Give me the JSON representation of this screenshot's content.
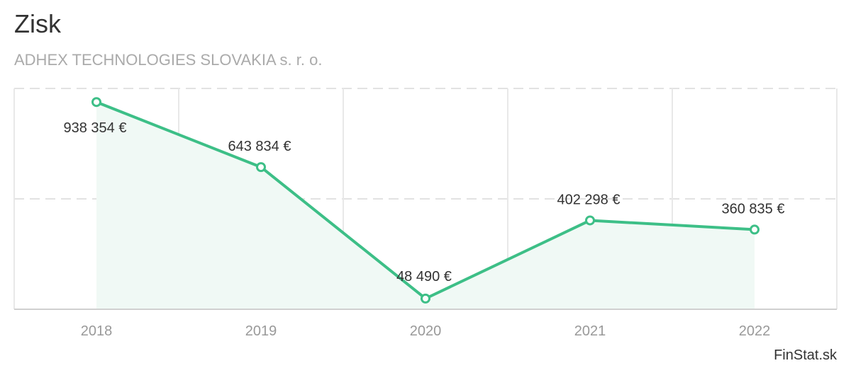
{
  "header": {
    "title": "Zisk",
    "subtitle": "ADHEX TECHNOLOGIES SLOVAKIA s. r. o."
  },
  "footer": {
    "credit": "FinStat.sk"
  },
  "chart_data": {
    "type": "area",
    "title": "Zisk",
    "subtitle": "ADHEX TECHNOLOGIES SLOVAKIA s. r. o.",
    "categories": [
      "2018",
      "2019",
      "2020",
      "2021",
      "2022"
    ],
    "series": [
      {
        "values": [
          938354,
          643834,
          48490,
          402298,
          360835
        ],
        "labels": [
          "938 354 €",
          "643 834 €",
          "48 490 €",
          "402 298 €",
          "360 835 €"
        ],
        "color": "#3dbf87",
        "fill": "#f0f9f5"
      }
    ],
    "ylim": [
      0,
      1000000
    ],
    "xlabel": "",
    "ylabel": "",
    "grid": true
  }
}
